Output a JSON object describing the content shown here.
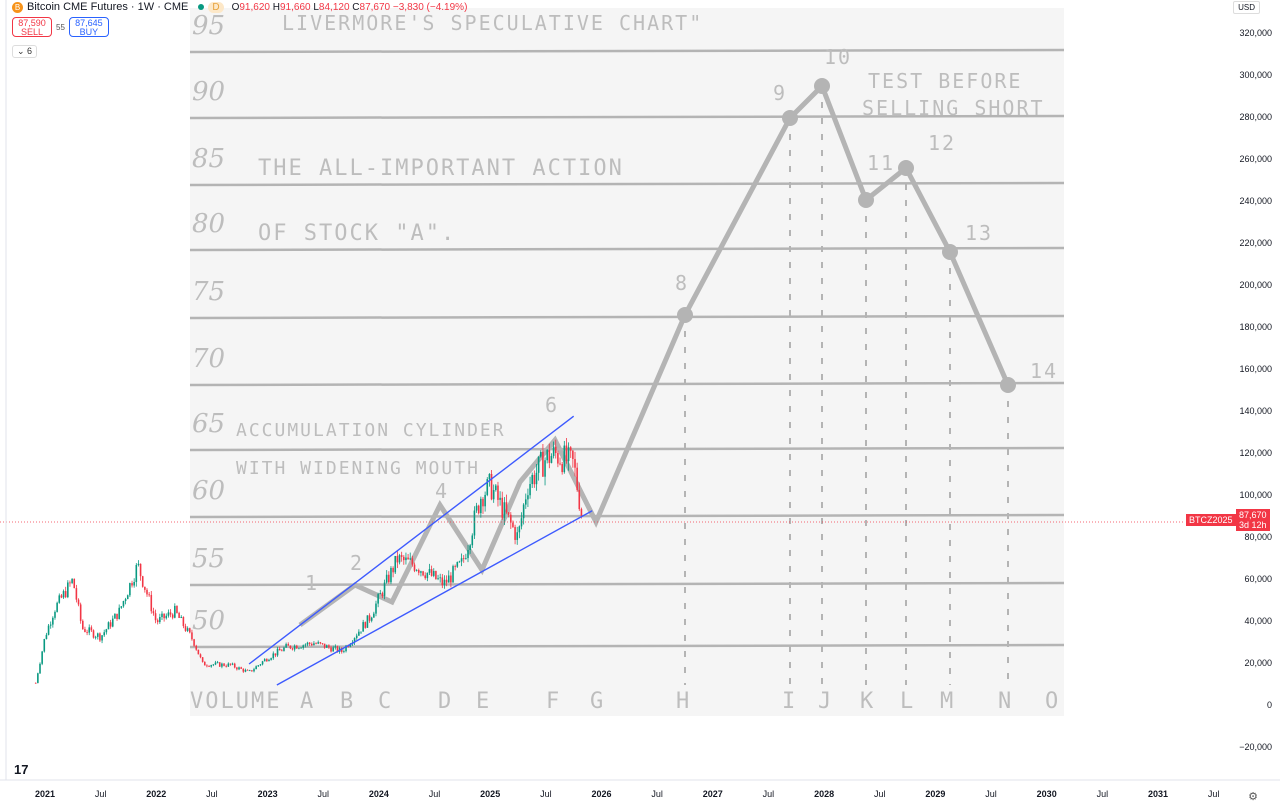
{
  "header": {
    "symbol": "Bitcoin CME Futures · 1W · CME",
    "coin_icon": "B",
    "badge": "D",
    "open": "91,620",
    "high": "91,660",
    "low": "84,120",
    "close": "87,670",
    "change": "−3,830 (−4.19%)",
    "o": "O",
    "h": "H",
    "l": "L",
    "c": "C"
  },
  "trade": {
    "sell_price": "87,590",
    "sell_label": "SELL",
    "spread": "55",
    "buy_price": "87,645",
    "buy_label": "BUY"
  },
  "indicators_toggle": "6",
  "currency": "USD",
  "price_axis": [
    "320,000",
    "300,000",
    "280,000",
    "260,000",
    "240,000",
    "220,000",
    "200,000",
    "180,000",
    "160,000",
    "140,000",
    "120,000",
    "100,000",
    "80,000",
    "60,000",
    "40,000",
    "20,000",
    "0",
    "−20,000"
  ],
  "price_axis_values": [
    320000,
    300000,
    280000,
    260000,
    240000,
    220000,
    200000,
    180000,
    160000,
    140000,
    120000,
    100000,
    80000,
    60000,
    40000,
    20000,
    0,
    -20000
  ],
  "time_axis": [
    {
      "t": "2021",
      "y": true
    },
    {
      "t": "Jul"
    },
    {
      "t": "2022",
      "y": true
    },
    {
      "t": "Jul"
    },
    {
      "t": "2023",
      "y": true
    },
    {
      "t": "Jul"
    },
    {
      "t": "2024",
      "y": true
    },
    {
      "t": "Jul"
    },
    {
      "t": "2025",
      "y": true
    },
    {
      "t": "Jul"
    },
    {
      "t": "2026",
      "y": true
    },
    {
      "t": "Jul"
    },
    {
      "t": "2027",
      "y": true
    },
    {
      "t": "Jul"
    },
    {
      "t": "2028",
      "y": true
    },
    {
      "t": "Jul"
    },
    {
      "t": "2029",
      "y": true
    },
    {
      "t": "Jul"
    },
    {
      "t": "2030",
      "y": true
    },
    {
      "t": "Jul"
    },
    {
      "t": "2031",
      "y": true
    },
    {
      "t": "Jul"
    }
  ],
  "last_price": {
    "ticker": "BTCZ2025",
    "price": "87,670",
    "countdown": "3d 12h"
  },
  "colors": {
    "up": "#089981",
    "down": "#f23645",
    "channel": "#3d5afe",
    "sketch": "#9a9a9a"
  },
  "chart_data": {
    "type": "candlestick",
    "ylim": [
      -20000,
      320000
    ],
    "monthly_close_approx": [
      [
        "2020-12",
        11000
      ],
      [
        "2021-01",
        33000
      ],
      [
        "2021-02",
        46000
      ],
      [
        "2021-04",
        60000
      ],
      [
        "2021-05",
        37000
      ],
      [
        "2021-07",
        33000
      ],
      [
        "2021-09",
        45000
      ],
      [
        "2021-11",
        67000
      ],
      [
        "2022-01",
        40000
      ],
      [
        "2022-03",
        45000
      ],
      [
        "2022-05",
        31000
      ],
      [
        "2022-06",
        20000
      ],
      [
        "2022-09",
        19500
      ],
      [
        "2022-11",
        16000
      ],
      [
        "2023-01",
        23000
      ],
      [
        "2023-03",
        28000
      ],
      [
        "2023-06",
        30000
      ],
      [
        "2023-09",
        26000
      ],
      [
        "2023-12",
        42000
      ],
      [
        "2024-03",
        70000
      ],
      [
        "2024-05",
        67000
      ],
      [
        "2024-08",
        58000
      ],
      [
        "2024-10",
        68000
      ],
      [
        "2024-12",
        100000
      ],
      [
        "2025-01",
        105000
      ],
      [
        "2025-04",
        80000
      ],
      [
        "2025-05",
        105000
      ],
      [
        "2025-07",
        118000
      ],
      [
        "2025-08",
        120000
      ],
      [
        "2025-10",
        115000
      ],
      [
        "2025-11",
        87670
      ]
    ],
    "channel_upper": [
      [
        "2022-11",
        20000
      ],
      [
        "2025-10",
        138000
      ]
    ],
    "channel_lower": [
      [
        "2023-02",
        10000
      ],
      [
        "2025-12",
        93000
      ]
    ]
  },
  "overlay": {
    "title": "LIVERMORE'S  SPECULATIVE  CHART\"",
    "subtitle1": "THE ALL-IMPORTANT ACTION",
    "subtitle2": "OF  STOCK \"A\".",
    "note1": "TEST BEFORE",
    "note2": "SELLING SHORT",
    "acc1": "ACCUMULATION  CYLINDER",
    "acc2": "WITH  WIDENING  MOUTH",
    "levels": [
      "95",
      "90",
      "85",
      "80",
      "75",
      "70",
      "65",
      "60",
      "55",
      "50"
    ],
    "points": [
      "1",
      "2",
      "4",
      "6",
      "8",
      "9",
      "10",
      "11",
      "12",
      "13",
      "14"
    ],
    "letters": [
      "VOLUME",
      "A",
      "B",
      "C",
      "D",
      "E",
      "F",
      "G",
      "H",
      "I",
      "J",
      "K",
      "L",
      "M",
      "N",
      "O"
    ]
  }
}
